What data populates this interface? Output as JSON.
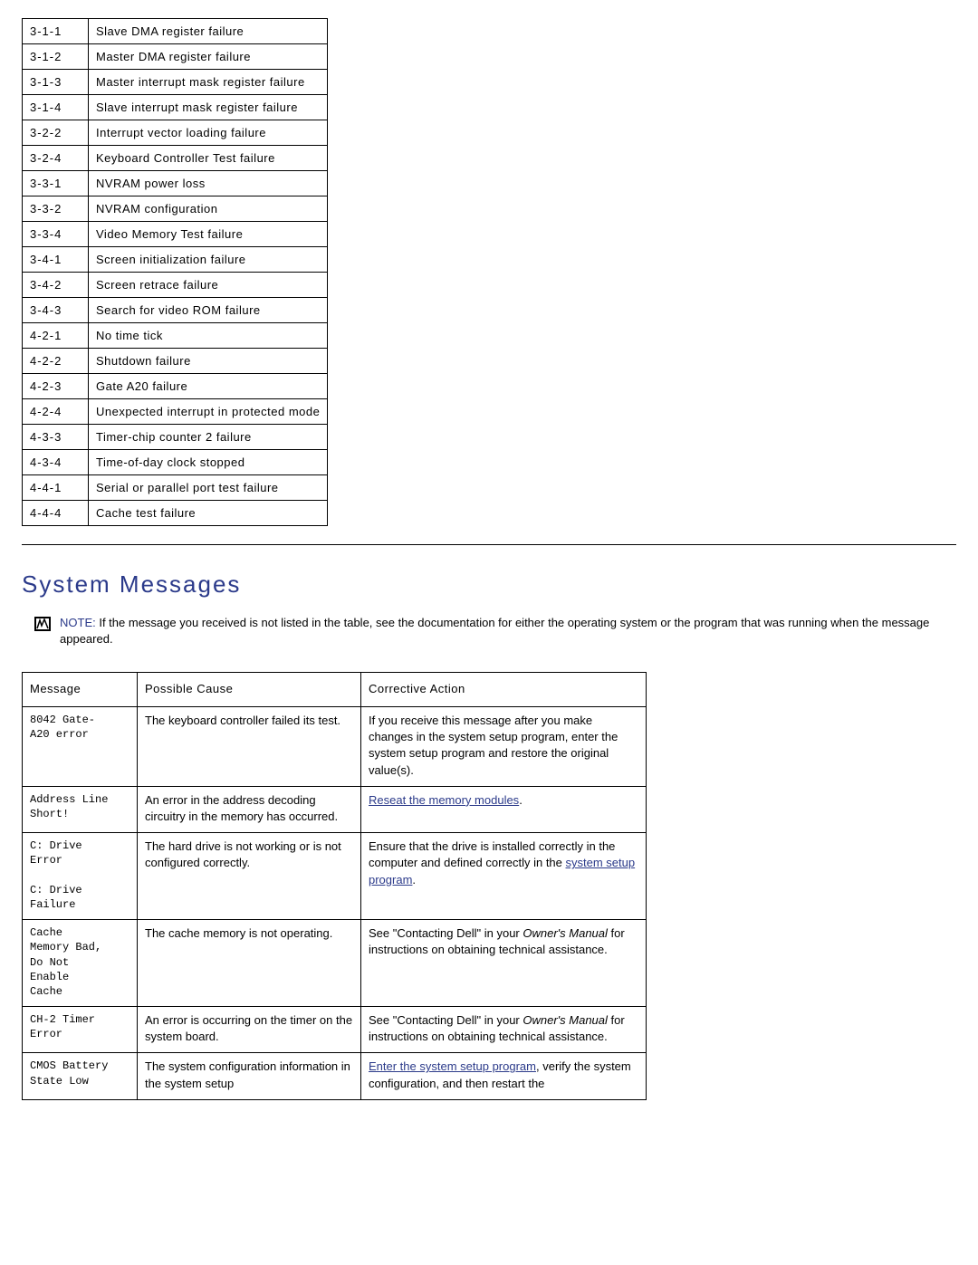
{
  "beep_codes_table": {
    "col_widths": [
      "56px",
      "auto"
    ],
    "rows": [
      {
        "code": "3-1-1",
        "desc": "Slave DMA register failure"
      },
      {
        "code": "3-1-2",
        "desc": "Master DMA register failure"
      },
      {
        "code": "3-1-3",
        "desc": "Master interrupt mask register failure"
      },
      {
        "code": "3-1-4",
        "desc": "Slave interrupt mask register failure"
      },
      {
        "code": "3-2-2",
        "desc": "Interrupt vector loading failure"
      },
      {
        "code": "3-2-4",
        "desc": "Keyboard Controller Test failure"
      },
      {
        "code": "3-3-1",
        "desc": "NVRAM power loss"
      },
      {
        "code": "3-3-2",
        "desc": "NVRAM configuration"
      },
      {
        "code": "3-3-4",
        "desc": "Video Memory Test failure"
      },
      {
        "code": "3-4-1",
        "desc": "Screen initialization failure"
      },
      {
        "code": "3-4-2",
        "desc": "Screen retrace failure"
      },
      {
        "code": "3-4-3",
        "desc": "Search for video ROM failure"
      },
      {
        "code": "4-2-1",
        "desc": "No time tick"
      },
      {
        "code": "4-2-2",
        "desc": "Shutdown failure"
      },
      {
        "code": "4-2-3",
        "desc": "Gate A20 failure"
      },
      {
        "code": "4-2-4",
        "desc": "Unexpected interrupt in protected mode"
      },
      {
        "code": "4-3-3",
        "desc": "Timer-chip counter 2 failure"
      },
      {
        "code": "4-3-4",
        "desc": "Time-of-day clock stopped"
      },
      {
        "code": "4-4-1",
        "desc": "Serial or parallel port test failure"
      },
      {
        "code": "4-4-4",
        "desc": "Cache test failure"
      }
    ]
  },
  "section_heading": "System Messages",
  "note": {
    "label": "NOTE:",
    "text": " If the message you received is not listed in the table, see the documentation for either the operating system or the program that was running when the message appeared."
  },
  "msg_table": {
    "headers": [
      "Message",
      "Possible Cause",
      "Corrective Action"
    ],
    "col_widths": [
      "110px",
      "230px",
      "auto"
    ],
    "rows": [
      {
        "msg": "8042 Gate-\nA20 error",
        "cause": "The keyboard controller failed its test.",
        "action_parts": [
          {
            "t": "text",
            "v": "If you receive this message after you make changes in the system setup program, enter the system setup program and restore the original value(s)."
          }
        ]
      },
      {
        "msg": "Address Line\nShort!",
        "cause": "An error in the address decoding circuitry in the memory has occurred.",
        "action_parts": [
          {
            "t": "link",
            "v": "Reseat the memory modules"
          },
          {
            "t": "text",
            "v": "."
          }
        ]
      },
      {
        "msg": "C: Drive\nError\n\nC: Drive\nFailure",
        "cause": "The hard drive is not working or is not configured correctly.",
        "action_parts": [
          {
            "t": "text",
            "v": "Ensure that the drive is installed correctly in the computer and defined correctly in the "
          },
          {
            "t": "link",
            "v": "system setup program"
          },
          {
            "t": "text",
            "v": "."
          }
        ]
      },
      {
        "msg": "Cache\nMemory Bad,\nDo Not\nEnable\nCache",
        "cause": "The cache memory is not operating.",
        "action_parts": [
          {
            "t": "text",
            "v": "See \"Contacting Dell\" in your "
          },
          {
            "t": "italic",
            "v": "Owner's Manual"
          },
          {
            "t": "text",
            "v": " for instructions on obtaining technical assistance."
          }
        ]
      },
      {
        "msg": "CH-2 Timer\nError",
        "cause": "An error is occurring on the timer on the system board.",
        "action_parts": [
          {
            "t": "text",
            "v": "See \"Contacting Dell\" in your "
          },
          {
            "t": "italic",
            "v": "Owner's Manual"
          },
          {
            "t": "text",
            "v": " for instructions on obtaining technical assistance."
          }
        ]
      },
      {
        "msg": "CMOS Battery\nState Low",
        "cause": "The system configuration information in the system setup",
        "action_parts": [
          {
            "t": "link",
            "v": "Enter the system setup program"
          },
          {
            "t": "text",
            "v": ", verify the system configuration, and then restart the"
          }
        ]
      }
    ]
  }
}
